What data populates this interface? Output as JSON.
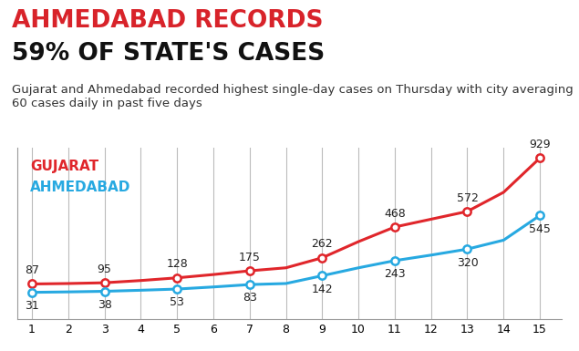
{
  "chart_data": {
    "type": "line",
    "title": "AHMEDABAD RECORDS\n59% OF STATE'S CASES",
    "subtitle": "Gujarat and Ahmedabad recorded highest single-day cases on Thursday with city averaging 60 cases daily in past five days",
    "x": [
      1,
      2,
      3,
      4,
      5,
      6,
      7,
      8,
      9,
      10,
      11,
      12,
      13,
      14,
      15
    ],
    "series": [
      {
        "name": "GUJARAT",
        "color": "#e0262b",
        "marker": "o",
        "values": [
          87,
          90,
          95,
          110,
          128,
          150,
          175,
          195,
          262,
          370,
          468,
          520,
          572,
          700,
          929
        ],
        "value_labels": [
          "87",
          null,
          "95",
          null,
          "128",
          null,
          "175",
          null,
          "262",
          null,
          "468",
          null,
          "572",
          null,
          "929"
        ]
      },
      {
        "name": "AHMEDABAD",
        "color": "#27a9e1",
        "marker": "o",
        "values": [
          31,
          34,
          38,
          45,
          53,
          67,
          83,
          90,
          142,
          195,
          243,
          280,
          320,
          380,
          545
        ],
        "value_labels": [
          "31",
          null,
          "38",
          null,
          "53",
          null,
          "83",
          null,
          "142",
          null,
          "243",
          null,
          "320",
          null,
          "545"
        ]
      }
    ],
    "xlim": [
      0.6,
      15.6
    ],
    "xticks": [
      1,
      2,
      3,
      4,
      5,
      6,
      7,
      8,
      9,
      10,
      11,
      12,
      13,
      14,
      15
    ],
    "ylim": [
      -150,
      1000
    ],
    "yticks": [],
    "grid": true,
    "legend": "upper left",
    "data_labels": true,
    "tick_labels": "x"
  }
}
